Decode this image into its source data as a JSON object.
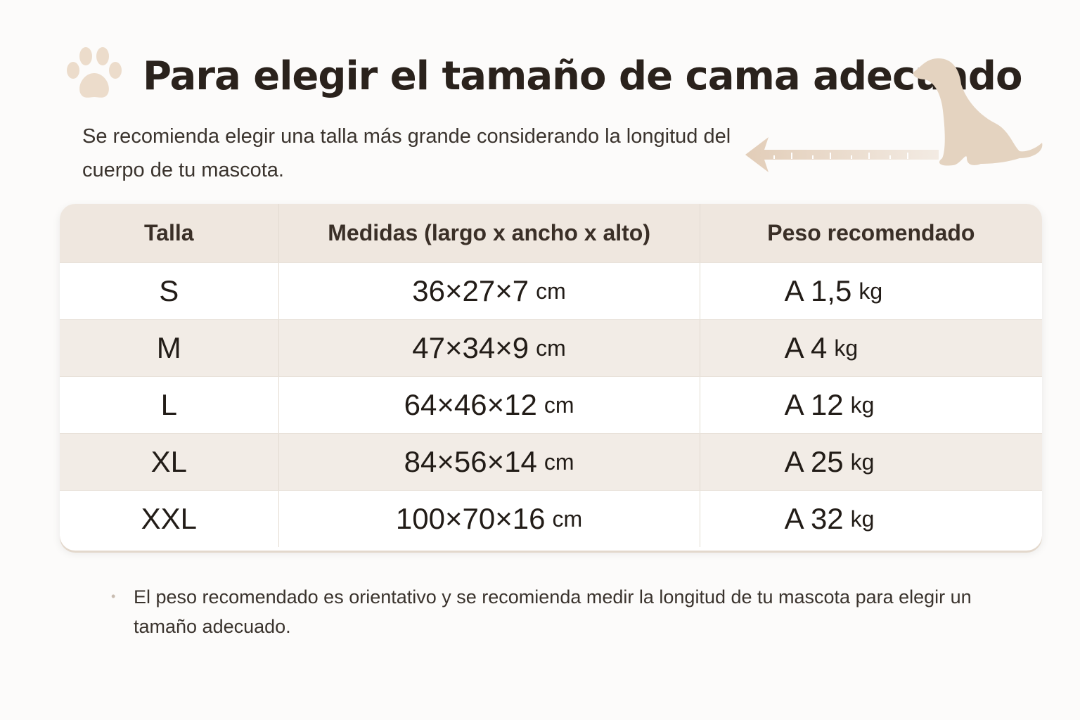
{
  "title": "Para elegir el tamaño de cama adecuado",
  "subtitle": "Se recomienda elegir una talla más grande considerando la longitud del cuerpo de tu mascota.",
  "table": {
    "headers": [
      "Talla",
      "Medidas (largo x ancho x alto)",
      "Peso recomendado"
    ],
    "rows": [
      {
        "size": "S",
        "dims": "36×27×7",
        "unit": "cm",
        "weight": "A 1,5",
        "wunit": "kg"
      },
      {
        "size": "M",
        "dims": "47×34×9",
        "unit": "cm",
        "weight": "A 4",
        "wunit": "kg"
      },
      {
        "size": "L",
        "dims": "64×46×12",
        "unit": "cm",
        "weight": "A 12",
        "wunit": "kg"
      },
      {
        "size": "XL",
        "dims": "84×56×14",
        "unit": "cm",
        "weight": "A 25",
        "wunit": "kg"
      },
      {
        "size": "XXL",
        "dims": "100×70×16",
        "unit": "cm",
        "weight": "A 32",
        "wunit": "kg"
      }
    ]
  },
  "note": "El peso recomendado es orientativo y se recomienda medir la longitud de tu mascota para elegir un tamaño adecuado.",
  "colors": {
    "accent": "#e4d3c0",
    "header_bg": "#efe7df",
    "row_shade": "#f2ece6"
  }
}
